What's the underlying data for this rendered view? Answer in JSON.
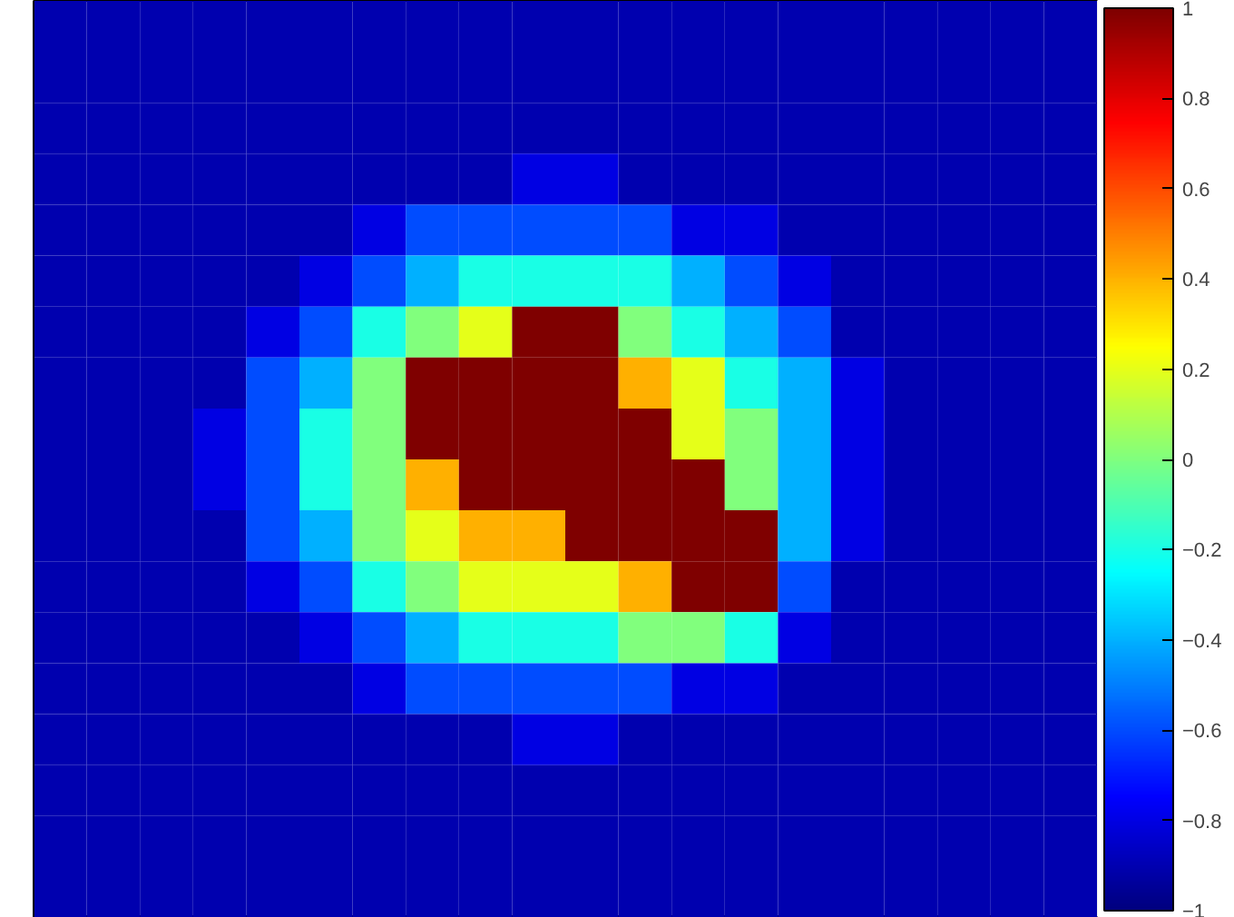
{
  "chart_data": {
    "type": "heatmap",
    "categories": [
      null,
      null,
      null,
      null,
      null,
      null,
      null,
      null,
      null,
      null,
      null,
      null,
      null,
      null,
      null,
      null,
      null,
      null,
      null,
      null
    ],
    "y_categories": [
      null,
      null,
      null,
      null,
      null,
      null,
      null,
      null,
      null,
      null,
      null,
      null,
      null,
      null,
      null,
      null,
      null,
      null
    ],
    "cells": [
      [
        -0.9,
        -0.9,
        -0.9,
        -0.9,
        -0.9,
        -0.9,
        -0.9,
        -0.9,
        -0.9,
        -0.9,
        -0.9,
        -0.9,
        -0.9,
        -0.9,
        -0.9,
        -0.9,
        -0.9,
        -0.9,
        -0.9,
        -0.9
      ],
      [
        -0.9,
        -0.9,
        -0.9,
        -0.9,
        -0.9,
        -0.9,
        -0.9,
        -0.9,
        -0.9,
        -0.9,
        -0.9,
        -0.9,
        -0.9,
        -0.9,
        -0.9,
        -0.9,
        -0.9,
        -0.9,
        -0.9,
        -0.9
      ],
      [
        -0.9,
        -0.9,
        -0.9,
        -0.9,
        -0.9,
        -0.9,
        -0.9,
        -0.9,
        -0.9,
        -0.9,
        -0.9,
        -0.9,
        -0.9,
        -0.9,
        -0.9,
        -0.9,
        -0.9,
        -0.9,
        -0.9,
        -0.9
      ],
      [
        -0.9,
        -0.9,
        -0.9,
        -0.9,
        -0.9,
        -0.9,
        -0.9,
        -0.9,
        -0.9,
        -0.8,
        -0.8,
        -0.9,
        -0.9,
        -0.9,
        -0.9,
        -0.9,
        -0.9,
        -0.9,
        -0.9,
        -0.9
      ],
      [
        -0.9,
        -0.9,
        -0.9,
        -0.9,
        -0.9,
        -0.9,
        -0.8,
        -0.6,
        -0.6,
        -0.6,
        -0.6,
        -0.6,
        -0.8,
        -0.8,
        -0.9,
        -0.9,
        -0.9,
        -0.9,
        -0.9,
        -0.9
      ],
      [
        -0.9,
        -0.9,
        -0.9,
        -0.9,
        -0.9,
        -0.8,
        -0.6,
        -0.4,
        -0.2,
        -0.2,
        -0.2,
        -0.2,
        -0.4,
        -0.6,
        -0.8,
        -0.9,
        -0.9,
        -0.9,
        -0.9,
        -0.9
      ],
      [
        -0.9,
        -0.9,
        -0.9,
        -0.9,
        -0.8,
        -0.6,
        -0.2,
        0,
        0.2,
        1,
        1,
        0,
        -0.2,
        -0.4,
        -0.6,
        -0.9,
        -0.9,
        -0.9,
        -0.9,
        -0.9
      ],
      [
        -0.9,
        -0.9,
        -0.9,
        -0.9,
        -0.6,
        -0.4,
        0,
        1,
        1,
        1,
        1,
        0.4,
        0.2,
        -0.2,
        -0.4,
        -0.8,
        -0.9,
        -0.9,
        -0.9,
        -0.9
      ],
      [
        -0.9,
        -0.9,
        -0.9,
        -0.8,
        -0.6,
        -0.2,
        0,
        1,
        1,
        1,
        1,
        1,
        0.2,
        0,
        -0.4,
        -0.8,
        -0.9,
        -0.9,
        -0.9,
        -0.9
      ],
      [
        -0.9,
        -0.9,
        -0.9,
        -0.8,
        -0.6,
        -0.2,
        0,
        0.4,
        1,
        1,
        1,
        1,
        1,
        0,
        -0.4,
        -0.8,
        -0.9,
        -0.9,
        -0.9,
        -0.9
      ],
      [
        -0.9,
        -0.9,
        -0.9,
        -0.9,
        -0.6,
        -0.4,
        0,
        0.2,
        0.4,
        0.4,
        1,
        1,
        1,
        1,
        -0.4,
        -0.8,
        -0.9,
        -0.9,
        -0.9,
        -0.9
      ],
      [
        -0.9,
        -0.9,
        -0.9,
        -0.9,
        -0.8,
        -0.6,
        -0.2,
        0,
        0.2,
        0.2,
        0.2,
        0.4,
        1,
        1,
        -0.6,
        -0.9,
        -0.9,
        -0.9,
        -0.9,
        -0.9
      ],
      [
        -0.9,
        -0.9,
        -0.9,
        -0.9,
        -0.9,
        -0.8,
        -0.6,
        -0.4,
        -0.2,
        -0.2,
        -0.2,
        0,
        0,
        -0.2,
        -0.8,
        -0.9,
        -0.9,
        -0.9,
        -0.9,
        -0.9
      ],
      [
        -0.9,
        -0.9,
        -0.9,
        -0.9,
        -0.9,
        -0.9,
        -0.8,
        -0.6,
        -0.6,
        -0.6,
        -0.6,
        -0.6,
        -0.8,
        -0.8,
        -0.9,
        -0.9,
        -0.9,
        -0.9,
        -0.9,
        -0.9
      ],
      [
        -0.9,
        -0.9,
        -0.9,
        -0.9,
        -0.9,
        -0.9,
        -0.9,
        -0.9,
        -0.9,
        -0.8,
        -0.8,
        -0.9,
        -0.9,
        -0.9,
        -0.9,
        -0.9,
        -0.9,
        -0.9,
        -0.9,
        -0.9
      ],
      [
        -0.9,
        -0.9,
        -0.9,
        -0.9,
        -0.9,
        -0.9,
        -0.9,
        -0.9,
        -0.9,
        -0.9,
        -0.9,
        -0.9,
        -0.9,
        -0.9,
        -0.9,
        -0.9,
        -0.9,
        -0.9,
        -0.9,
        -0.9
      ],
      [
        -0.9,
        -0.9,
        -0.9,
        -0.9,
        -0.9,
        -0.9,
        -0.9,
        -0.9,
        -0.9,
        -0.9,
        -0.9,
        -0.9,
        -0.9,
        -0.9,
        -0.9,
        -0.9,
        -0.9,
        -0.9,
        -0.9,
        -0.9
      ],
      [
        -0.9,
        -0.9,
        -0.9,
        -0.9,
        -0.9,
        -0.9,
        -0.9,
        -0.9,
        -0.9,
        -0.9,
        -0.9,
        -0.9,
        -0.9,
        -0.9,
        -0.9,
        -0.9,
        -0.9,
        -0.9,
        -0.9,
        -0.9
      ]
    ],
    "clim": [
      -1,
      1
    ],
    "cticks": [
      -1,
      -0.8,
      -0.6,
      -0.4,
      -0.2,
      0,
      0.2,
      0.4,
      0.6,
      0.8,
      1
    ],
    "tick_labels": false
  }
}
